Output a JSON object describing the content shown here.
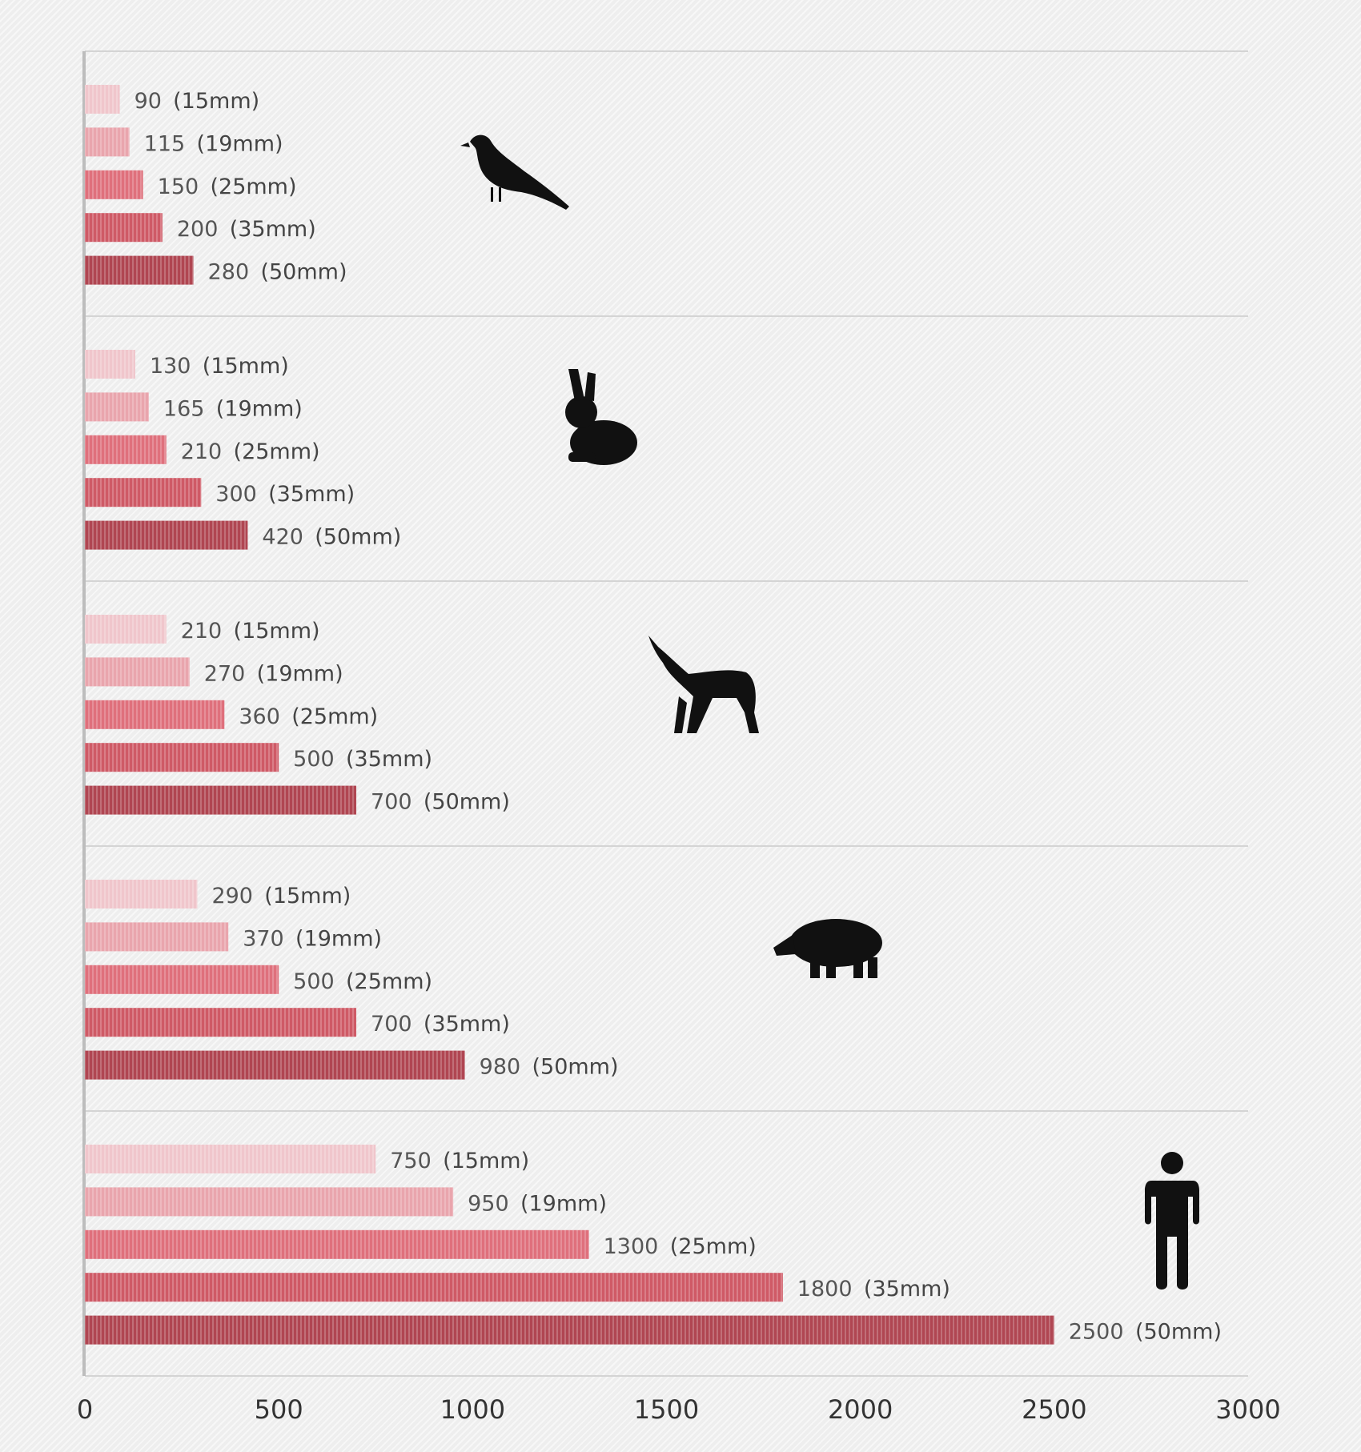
{
  "chart_data": {
    "type": "bar",
    "orientation": "horizontal",
    "title": "",
    "xlabel": "",
    "ylabel": "",
    "xlim": [
      0,
      3000
    ],
    "x_ticks": [
      "0",
      "500",
      "1000",
      "1500",
      "2000",
      "2500",
      "3000"
    ],
    "grid": false,
    "legend": "none",
    "colors": [
      "#f0c6cc",
      "#e9a5ad",
      "#df707c",
      "#cf5a66",
      "#b04652"
    ],
    "groups": [
      {
        "icon": "bird-icon",
        "bars": [
          {
            "value": 90,
            "label": "90",
            "note": "(15mm)"
          },
          {
            "value": 115,
            "label": "115",
            "note": "(19mm)"
          },
          {
            "value": 150,
            "label": "150",
            "note": "(25mm)"
          },
          {
            "value": 200,
            "label": "200",
            "note": "(35mm)"
          },
          {
            "value": 280,
            "label": "280",
            "note": "(50mm)"
          }
        ]
      },
      {
        "icon": "rabbit-icon",
        "bars": [
          {
            "value": 130,
            "label": "130",
            "note": "(15mm)"
          },
          {
            "value": 165,
            "label": "165",
            "note": "(19mm)"
          },
          {
            "value": 210,
            "label": "210",
            "note": "(25mm)"
          },
          {
            "value": 300,
            "label": "300",
            "note": "(35mm)"
          },
          {
            "value": 420,
            "label": "420",
            "note": "(50mm)"
          }
        ]
      },
      {
        "icon": "wolf-icon",
        "bars": [
          {
            "value": 210,
            "label": "210",
            "note": "(15mm)"
          },
          {
            "value": 270,
            "label": "270",
            "note": "(19mm)"
          },
          {
            "value": 360,
            "label": "360",
            "note": "(25mm)"
          },
          {
            "value": 500,
            "label": "500",
            "note": "(35mm)"
          },
          {
            "value": 700,
            "label": "700",
            "note": "(50mm)"
          }
        ]
      },
      {
        "icon": "boar-icon",
        "bars": [
          {
            "value": 290,
            "label": "290",
            "note": "(15mm)"
          },
          {
            "value": 370,
            "label": "370",
            "note": "(19mm)"
          },
          {
            "value": 500,
            "label": "500",
            "note": "(25mm)"
          },
          {
            "value": 700,
            "label": "700",
            "note": "(35mm)"
          },
          {
            "value": 980,
            "label": "980",
            "note": "(50mm)"
          }
        ]
      },
      {
        "icon": "person-icon",
        "bars": [
          {
            "value": 750,
            "label": "750",
            "note": "(15mm)"
          },
          {
            "value": 950,
            "label": "950",
            "note": "(19mm)"
          },
          {
            "value": 1300,
            "label": "1300",
            "note": "(25mm)"
          },
          {
            "value": 1800,
            "label": "1800",
            "note": "(35mm)"
          },
          {
            "value": 2500,
            "label": "2500",
            "note": "(50mm)"
          }
        ]
      }
    ]
  }
}
